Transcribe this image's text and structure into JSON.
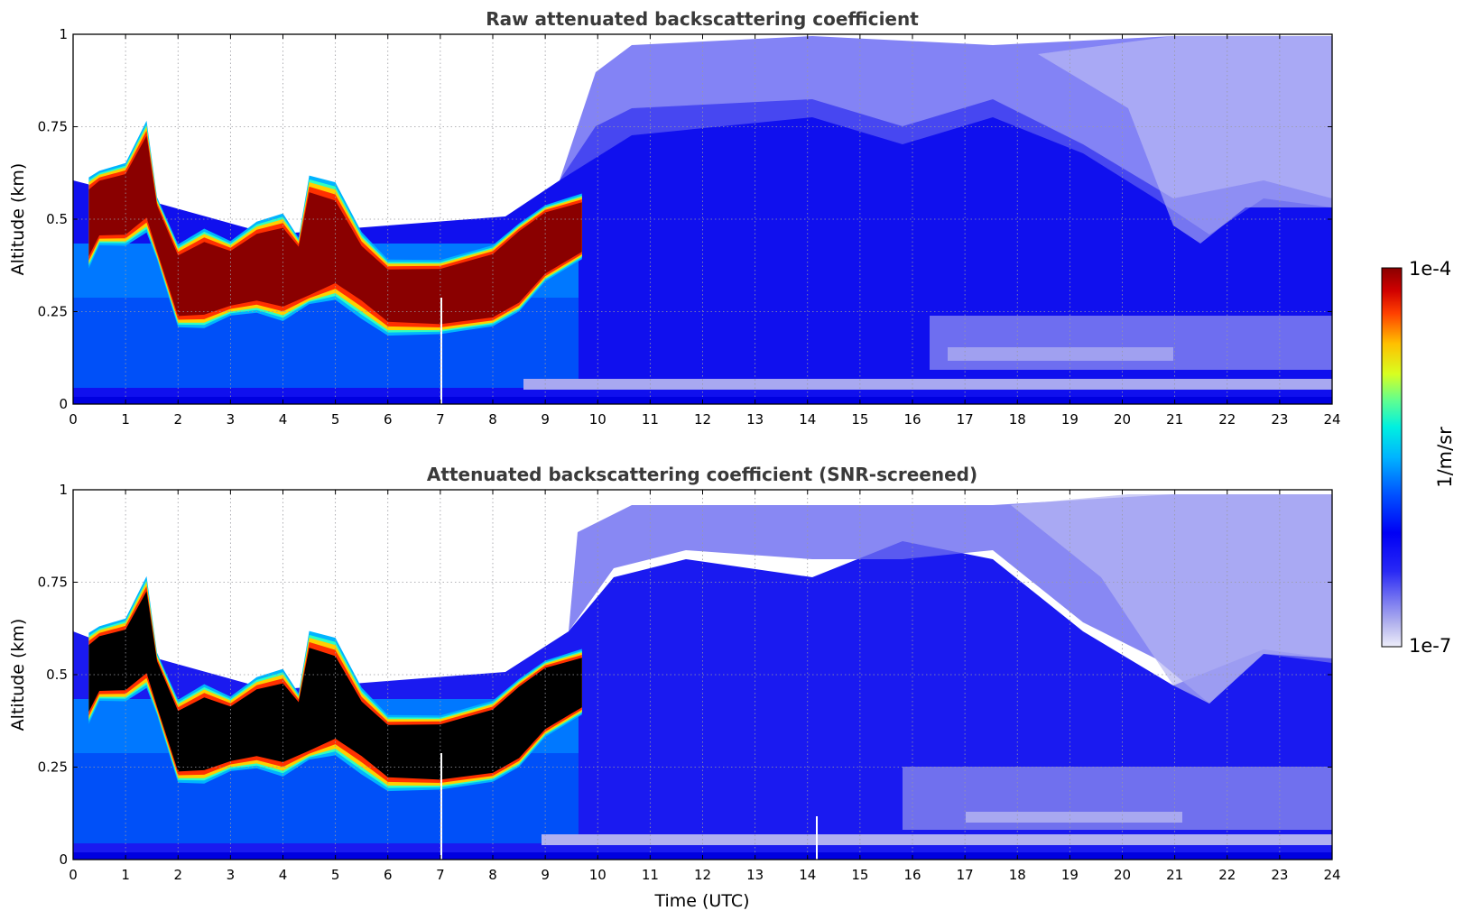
{
  "chart_data": [
    {
      "type": "heatmap",
      "title": "Raw attenuated backscattering coefficient",
      "xlabel": "",
      "ylabel": "Altitude (km)",
      "xlim": [
        0,
        24
      ],
      "ylim": [
        0,
        1
      ],
      "x_ticks": [
        "0",
        "1",
        "2",
        "3",
        "4",
        "5",
        "6",
        "7",
        "8",
        "9",
        "10",
        "11",
        "12",
        "13",
        "14",
        "15",
        "16",
        "17",
        "18",
        "19",
        "20",
        "21",
        "22",
        "23",
        "24"
      ],
      "y_ticks": [
        "0",
        "0.25",
        "0.5",
        "0.75",
        "1"
      ],
      "grid": true,
      "layer_top_km": [
        [
          0.3,
          0.6
        ],
        [
          0.5,
          0.62
        ],
        [
          1.0,
          0.64
        ],
        [
          1.4,
          0.75
        ],
        [
          1.6,
          0.55
        ],
        [
          2.0,
          0.42
        ],
        [
          2.5,
          0.46
        ],
        [
          3.0,
          0.43
        ],
        [
          3.5,
          0.48
        ],
        [
          4.0,
          0.5
        ],
        [
          4.3,
          0.44
        ],
        [
          4.5,
          0.6
        ],
        [
          5.0,
          0.58
        ],
        [
          5.5,
          0.45
        ],
        [
          6.0,
          0.38
        ],
        [
          7.0,
          0.38
        ],
        [
          8.0,
          0.42
        ],
        [
          8.5,
          0.48
        ],
        [
          9.0,
          0.53
        ],
        [
          9.7,
          0.56
        ]
      ],
      "layer_bottom_km": [
        [
          0.3,
          0.38
        ],
        [
          0.5,
          0.44
        ],
        [
          1.0,
          0.44
        ],
        [
          1.4,
          0.48
        ],
        [
          1.6,
          0.4
        ],
        [
          2.0,
          0.22
        ],
        [
          2.5,
          0.22
        ],
        [
          3.0,
          0.25
        ],
        [
          3.5,
          0.26
        ],
        [
          4.0,
          0.24
        ],
        [
          4.5,
          0.28
        ],
        [
          5.0,
          0.3
        ],
        [
          5.5,
          0.25
        ],
        [
          6.0,
          0.2
        ],
        [
          7.0,
          0.2
        ],
        [
          8.0,
          0.22
        ],
        [
          8.5,
          0.26
        ],
        [
          9.0,
          0.34
        ],
        [
          9.7,
          0.4
        ]
      ]
    },
    {
      "type": "heatmap",
      "title": "Attenuated backscattering coefficient (SNR-screened)",
      "xlabel": "Time (UTC)",
      "ylabel": "Altitude (km)",
      "xlim": [
        0,
        24
      ],
      "ylim": [
        0,
        1
      ],
      "x_ticks": [
        "0",
        "1",
        "2",
        "3",
        "4",
        "5",
        "6",
        "7",
        "8",
        "9",
        "10",
        "11",
        "12",
        "13",
        "14",
        "15",
        "16",
        "17",
        "18",
        "19",
        "20",
        "21",
        "22",
        "23",
        "24"
      ],
      "y_ticks": [
        "0",
        "0.25",
        "0.5",
        "0.75",
        "1"
      ],
      "grid": true,
      "saturated_color": "#000000"
    }
  ],
  "colorbar": {
    "label": "1/m/sr",
    "max_label": "1e-4",
    "min_label": "1e-7",
    "scale": "log",
    "colors": [
      "#eeeefa",
      "#b4b4ee",
      "#7a7af0",
      "#3d3df5",
      "#0000f5",
      "#0032ff",
      "#0078ff",
      "#00b4ff",
      "#00e0f0",
      "#30ffc0",
      "#90ff60",
      "#e0ff10",
      "#ffd000",
      "#ff8000",
      "#ff3000",
      "#d80000",
      "#8a0000"
    ]
  }
}
